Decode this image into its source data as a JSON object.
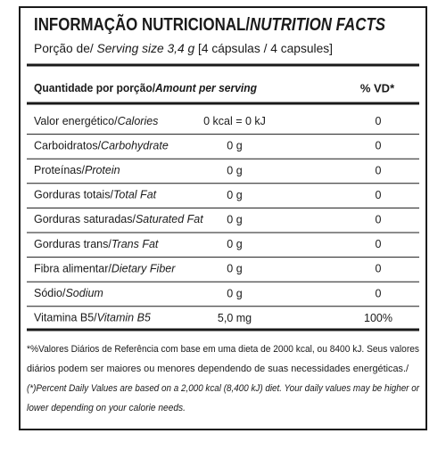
{
  "header": {
    "title_pt": "INFORMAÇÃO NUTRICIONAL/",
    "title_en": "NUTRITION FACTS",
    "serving_pt": "Porção de/ ",
    "serving_en": "Serving size 3,4 g",
    "serving_units": " [4 cápsulas / 4 capsules]"
  },
  "table": {
    "header": {
      "amount_pt": "Quantidade por porção/",
      "amount_en": "Amount per serving",
      "dv": "% VD*"
    },
    "rows": [
      [
        "Valor energético/",
        "Calories",
        "0 kcal = 0 kJ",
        "0"
      ],
      [
        "Carboidratos/",
        "Carbohydrate",
        "0 g",
        "0"
      ],
      [
        "Proteínas/",
        "Protein",
        "0 g",
        "0"
      ],
      [
        "Gorduras totais/",
        "Total Fat",
        "0 g",
        "0"
      ],
      [
        "Gorduras saturadas/",
        "Saturated Fat",
        "0 g",
        "0"
      ],
      [
        "Gorduras trans/",
        "Trans Fat",
        "0 g",
        "0"
      ],
      [
        "Fibra alimentar/",
        "Dietary Fiber",
        "0 g",
        "0"
      ],
      [
        "Sódio/",
        "Sodium",
        "0 g",
        "0"
      ],
      [
        "Vitamina B5/",
        "Vitamin B5",
        "5,0 mg",
        "100%"
      ]
    ]
  },
  "footnote": [
    "*%Valores Diários de Referência com base em uma dieta de 2000 kcal, ou 8400 kJ. Seus valores",
    "diários podem ser maiores ou menores dependendo de suas necessidades energéticas./",
    "(*)Percent Daily Values are based on a 2,000 kcal (8,400 kJ) diet. Your daily values may be higher or",
    "lower depending on your calorie needs."
  ]
}
